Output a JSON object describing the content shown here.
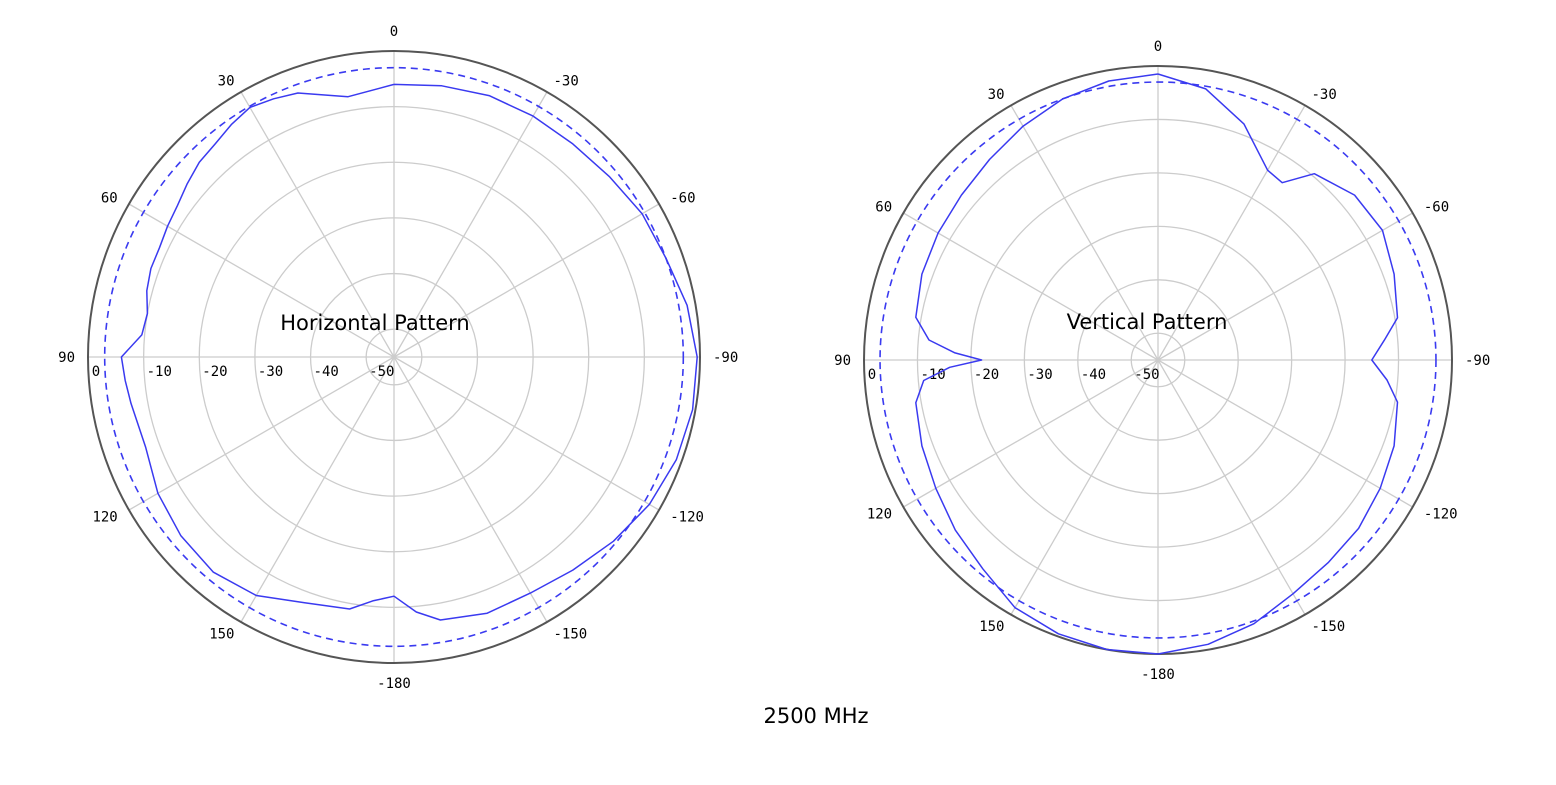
{
  "title": "2500 MHz",
  "chart_data": [
    {
      "type": "polar-line",
      "title": "Horizontal Pattern",
      "angle_ticks": [
        "0",
        "30",
        "60",
        "90",
        "120",
        "150",
        "-180",
        "-150",
        "-120",
        "-90",
        "-60",
        "-30"
      ],
      "angle_tick_values": [
        0,
        30,
        60,
        90,
        120,
        150,
        180,
        210,
        240,
        270,
        300,
        330
      ],
      "radial_ticks": [
        "0",
        "-10",
        "-20",
        "-30",
        "-40",
        "-50"
      ],
      "radial_tick_values": [
        0,
        -10,
        -20,
        -30,
        -40,
        -50
      ],
      "rlim": [
        -55,
        0
      ],
      "reference_circle_db": -3,
      "grid": true,
      "colors": {
        "series": "#3a3af0",
        "grid": "#cccccc",
        "frame": "#555555"
      },
      "series": [
        {
          "angle_deg": [
            0,
            10,
            20,
            25,
            30,
            35,
            40,
            45,
            50,
            55,
            60,
            65,
            70,
            75,
            80,
            85,
            90,
            95,
            100,
            110,
            120,
            130,
            140,
            150,
            160,
            170,
            175,
            180,
            185,
            190,
            200,
            210,
            220,
            230,
            240,
            250,
            260,
            270,
            280,
            290,
            300,
            310,
            320,
            330,
            340,
            350,
            360
          ],
          "gain_db": [
            -6,
            -7.5,
            -4.5,
            -3.8,
            -3.2,
            -4,
            -5,
            -5.5,
            -6.5,
            -7.5,
            -8,
            -8.5,
            -8.5,
            -9,
            -10,
            -9.5,
            -6,
            -6.5,
            -7,
            -7.5,
            -6,
            -5,
            -4.5,
            -5.5,
            -8,
            -9,
            -11,
            -12,
            -9,
            -7,
            -6,
            -6,
            -5,
            -3.5,
            -2,
            -1,
            -0.5,
            -0.5,
            -1.5,
            -3,
            -3.5,
            -4.5,
            -5,
            -5,
            -5,
            -5.5,
            -6
          ]
        }
      ]
    },
    {
      "type": "polar-line",
      "title": "Vertical Pattern",
      "angle_ticks": [
        "0",
        "30",
        "60",
        "90",
        "120",
        "150",
        "-180",
        "-150",
        "-120",
        "-90",
        "-60",
        "-30"
      ],
      "angle_tick_values": [
        0,
        30,
        60,
        90,
        120,
        150,
        180,
        210,
        240,
        270,
        300,
        330
      ],
      "radial_ticks": [
        "0",
        "-10",
        "-20",
        "-30",
        "-40",
        "-50"
      ],
      "radial_tick_values": [
        0,
        -10,
        -20,
        -30,
        -40,
        -50
      ],
      "rlim": [
        -55,
        0
      ],
      "reference_circle_db": -3,
      "grid": true,
      "colors": {
        "series": "#3a3af0",
        "grid": "#cccccc",
        "frame": "#555555"
      },
      "series": [
        {
          "angle_deg": [
            0,
            10,
            20,
            30,
            40,
            50,
            60,
            70,
            80,
            85,
            88,
            90,
            92,
            95,
            100,
            110,
            120,
            130,
            140,
            150,
            160,
            170,
            180,
            190,
            200,
            210,
            220,
            230,
            240,
            250,
            260,
            265,
            270,
            275,
            280,
            290,
            300,
            310,
            320,
            325,
            330,
            340,
            350,
            360
          ],
          "gain_db": [
            -1.5,
            -2,
            -3,
            -4.5,
            -6,
            -7,
            -7.5,
            -8,
            -9,
            -12,
            -17,
            -22,
            -16,
            -11,
            -9,
            -8,
            -7,
            -5.5,
            -4,
            -1.5,
            -0.5,
            0,
            0,
            -1,
            -2.5,
            -4.5,
            -5.5,
            -6,
            -7,
            -8,
            -9.5,
            -12,
            -15,
            -12.5,
            -9.5,
            -8,
            -6.5,
            -7,
            -9.5,
            -14.5,
            -14,
            -8,
            -3.5,
            -1.5
          ]
        }
      ]
    }
  ]
}
